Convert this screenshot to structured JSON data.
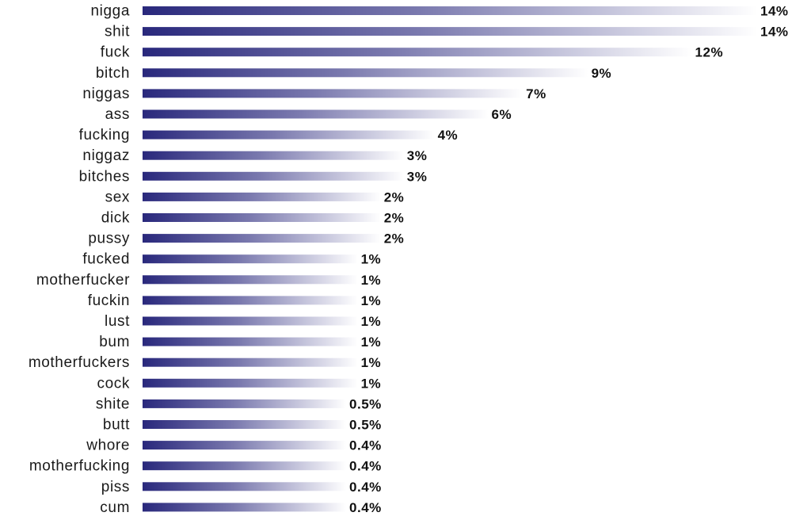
{
  "chart_data": {
    "type": "bar",
    "orientation": "horizontal",
    "categories": [
      "nigga",
      "shit",
      "fuck",
      "bitch",
      "niggas",
      "ass",
      "fucking",
      "niggaz",
      "bitches",
      "sex",
      "dick",
      "pussy",
      "fucked",
      "motherfucker",
      "fuckin",
      "lust",
      "bum",
      "motherfuckers",
      "cock",
      "shite",
      "butt",
      "whore",
      "motherfucking",
      "piss",
      "cum"
    ],
    "values": [
      14,
      14,
      12,
      9,
      7,
      6,
      4,
      3,
      3,
      2,
      2,
      2,
      1,
      1,
      1,
      1,
      1,
      1,
      1,
      0.5,
      0.5,
      0.4,
      0.4,
      0.4,
      0.4
    ],
    "value_labels": [
      "14%",
      "14%",
      "12%",
      "9%",
      "7%",
      "6%",
      "4%",
      "3%",
      "3%",
      "2%",
      "2%",
      "2%",
      "1%",
      "1%",
      "1%",
      "1%",
      "1%",
      "1%",
      "1%",
      "0.5%",
      "0.5%",
      "0.4%",
      "0.4%",
      "0.4%",
      "0.4%"
    ],
    "bar_lengths_approx": [
      16.0,
      16.0,
      14.3,
      11.6,
      9.9,
      9.0,
      7.6,
      6.8,
      6.8,
      6.2,
      6.2,
      6.2,
      5.6,
      5.6,
      5.6,
      5.6,
      5.6,
      5.6,
      5.6,
      5.3,
      5.3,
      5.3,
      5.3,
      5.3,
      5.3
    ],
    "title": "",
    "xlabel": "",
    "ylabel": "",
    "grid": false,
    "legend": "none",
    "colors": {
      "bar_start": "#29287c",
      "bar_end": "#ffffff",
      "text": "#1a1a1a"
    }
  }
}
